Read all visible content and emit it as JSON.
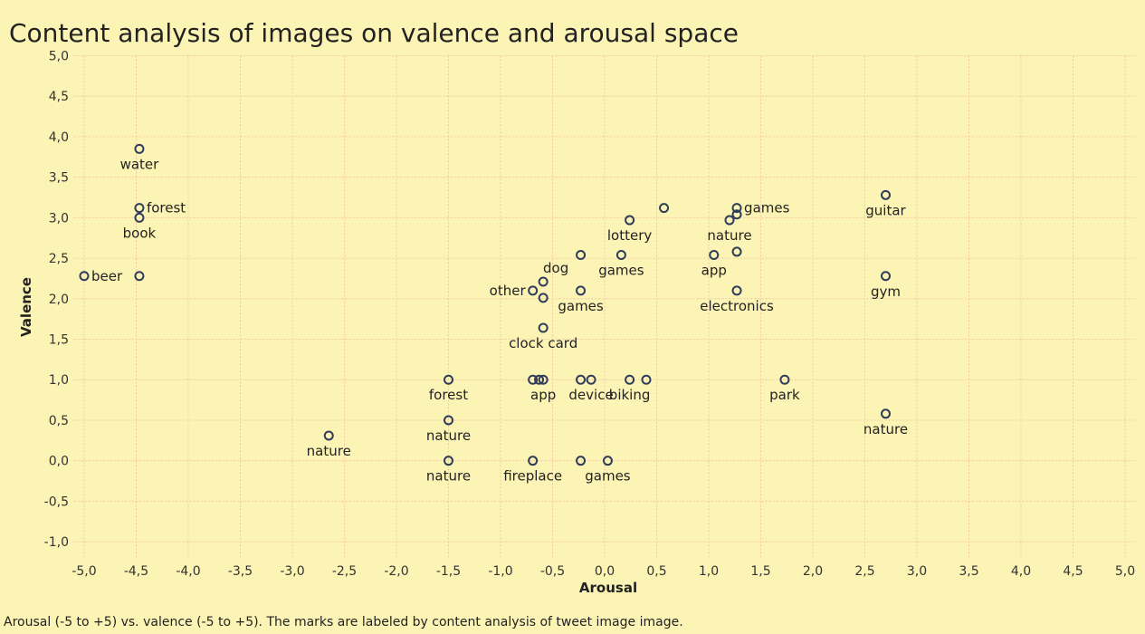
{
  "chart_data": {
    "type": "scatter",
    "title": "Content analysis of images on valence and arousal space",
    "x_label": "Arousal",
    "y_label": "Valence",
    "caption": "Arousal (-5 to +5) vs. valence (-5 to +5).  The marks are labeled by content analysis of tweet image image.",
    "color": "#2f3d5a",
    "grid": true,
    "xlim": [
      -5.1,
      5.1
    ],
    "ylim": [
      -1.2,
      5.0
    ],
    "xticks": [
      {
        "value": -5.0,
        "label": "-5,0"
      },
      {
        "value": -4.5,
        "label": "-4,5"
      },
      {
        "value": -4.0,
        "label": "-4,0"
      },
      {
        "value": -3.5,
        "label": "-3,5"
      },
      {
        "value": -3.0,
        "label": "-3,0"
      },
      {
        "value": -2.5,
        "label": "-2,5"
      },
      {
        "value": -2.0,
        "label": "-2,0"
      },
      {
        "value": -1.5,
        "label": "-1,5"
      },
      {
        "value": -1.0,
        "label": "-1,0"
      },
      {
        "value": -0.5,
        "label": "-0,5"
      },
      {
        "value": 0.0,
        "label": "0,0"
      },
      {
        "value": 0.5,
        "label": "0,5"
      },
      {
        "value": 1.0,
        "label": "1,0"
      },
      {
        "value": 1.5,
        "label": "1,5"
      },
      {
        "value": 2.0,
        "label": "2,0"
      },
      {
        "value": 2.5,
        "label": "2,5"
      },
      {
        "value": 3.0,
        "label": "3,0"
      },
      {
        "value": 3.5,
        "label": "3,5"
      },
      {
        "value": 4.0,
        "label": "4,0"
      },
      {
        "value": 4.5,
        "label": "4,5"
      },
      {
        "value": 5.0,
        "label": "5,0"
      }
    ],
    "yticks": [
      {
        "value": -1.0,
        "label": "-1,0"
      },
      {
        "value": -0.5,
        "label": "-0,5"
      },
      {
        "value": 0.0,
        "label": "0,0"
      },
      {
        "value": 0.5,
        "label": "0,5"
      },
      {
        "value": 1.0,
        "label": "1,0"
      },
      {
        "value": 1.5,
        "label": "1,5"
      },
      {
        "value": 2.0,
        "label": "2,0"
      },
      {
        "value": 2.5,
        "label": "2,5"
      },
      {
        "value": 3.0,
        "label": "3,0"
      },
      {
        "value": 3.5,
        "label": "3,5"
      },
      {
        "value": 4.0,
        "label": "4,0"
      },
      {
        "value": 4.5,
        "label": "4,5"
      },
      {
        "value": 5.0,
        "label": "5,0"
      }
    ],
    "x": [
      -5.0,
      -4.47,
      -4.47,
      -4.47,
      -4.47,
      -2.65,
      -1.5,
      -1.5,
      -1.5,
      -0.69,
      -0.59,
      -0.59,
      -0.23,
      -0.23,
      0.16,
      0.24,
      0.57,
      -0.59,
      -0.69,
      -0.63,
      -0.59,
      -0.23,
      -0.13,
      0.24,
      0.4,
      1.73,
      2.7,
      2.7,
      2.7,
      1.27,
      1.27,
      1.2,
      1.05,
      1.27,
      1.27,
      -0.69,
      -0.23,
      0.03
    ],
    "y": [
      2.28,
      2.28,
      3.85,
      3.12,
      3.0,
      0.31,
      1.0,
      0.5,
      0.0,
      2.1,
      2.21,
      2.01,
      2.1,
      2.54,
      2.54,
      2.97,
      3.12,
      1.64,
      1.0,
      1.0,
      1.0,
      1.0,
      1.0,
      1.0,
      1.0,
      1.0,
      0.58,
      2.28,
      3.28,
      3.12,
      3.04,
      2.97,
      2.54,
      2.58,
      2.1,
      0.0,
      0.0,
      0.0
    ],
    "labels": [
      "beer",
      null,
      "water",
      "forest",
      "book",
      "nature",
      "forest",
      "nature",
      "nature",
      "other",
      "dog",
      null,
      "games",
      null,
      "games",
      "lottery",
      null,
      "clock card",
      null,
      null,
      "app",
      null,
      "device",
      "biking",
      null,
      "park",
      "nature",
      "gym",
      "guitar",
      "games",
      null,
      "nature",
      "app",
      null,
      "electronics",
      "fireplace",
      null,
      "games"
    ]
  }
}
